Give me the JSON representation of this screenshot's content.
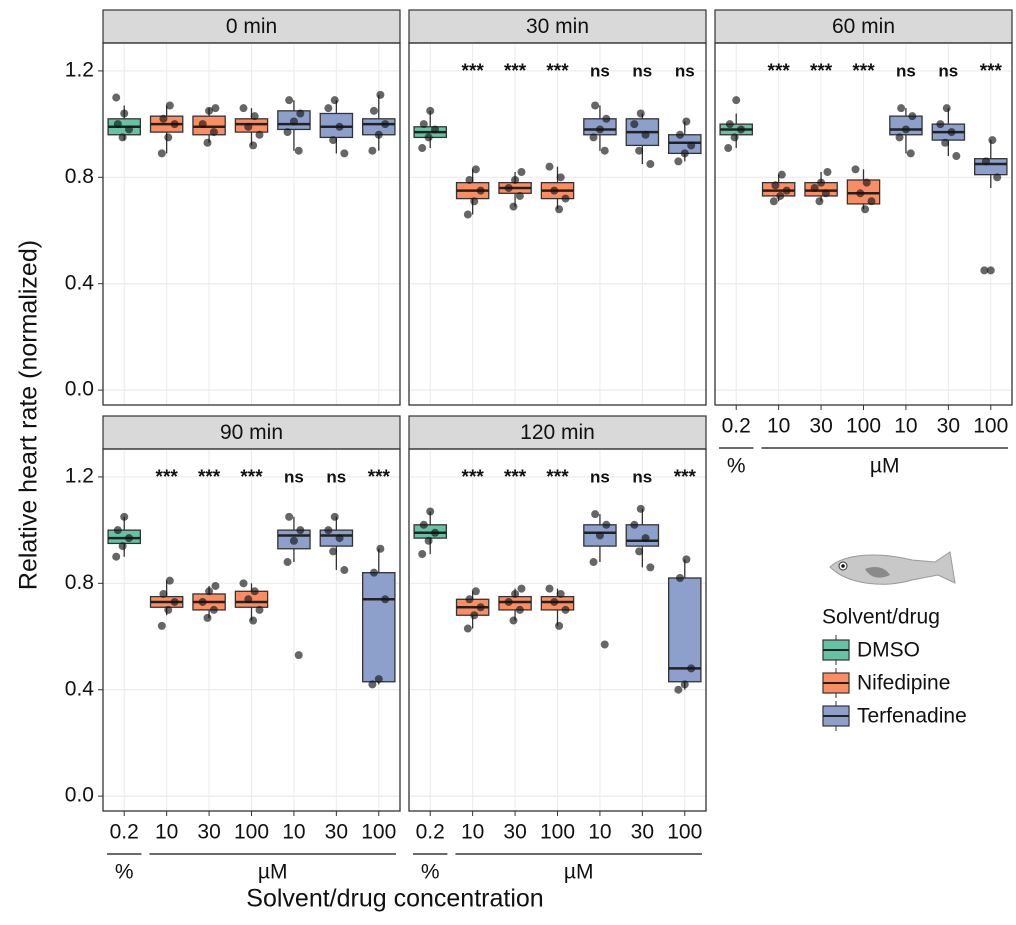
{
  "y_label": "Relative heart rate (normalized)",
  "x_label": "Solvent/drug concentration",
  "legend_title": "Solvent/drug",
  "series": [
    {
      "name": "DMSO",
      "color": "#66c2a5",
      "categories": [
        "0.2"
      ],
      "unit": "%"
    },
    {
      "name": "Nifedipine",
      "color": "#fc8d62",
      "categories": [
        "10",
        "30",
        "100"
      ],
      "unit": "µM"
    },
    {
      "name": "Terfenadine",
      "color": "#8da0cb",
      "categories": [
        "10",
        "30",
        "100"
      ],
      "unit": "µM"
    }
  ],
  "chart_data": [
    {
      "type": "box",
      "title": "0 min",
      "ylim": [
        -0.056,
        1.305
      ],
      "yticks": [
        {
          "value": 0,
          "label": "0.0"
        },
        0.4,
        0.8,
        1.2
      ],
      "boxes": [
        [
          {
            "q1": 0.96,
            "median": 0.99,
            "q3": 1.02,
            "low": 0.94,
            "high": 1.07,
            "points": [
              1.1,
              0.95,
              0.98,
              1.0,
              1.04
            ]
          }
        ],
        [
          {
            "q1": 0.97,
            "median": 1.0,
            "q3": 1.03,
            "low": 0.89,
            "high": 1.07,
            "points": [
              0.89,
              0.95,
              1.0,
              1.02,
              1.07
            ]
          },
          {
            "q1": 0.96,
            "median": 0.99,
            "q3": 1.03,
            "low": 0.93,
            "high": 1.06,
            "points": [
              0.93,
              0.97,
              1.0,
              1.05,
              1.06
            ]
          },
          {
            "q1": 0.97,
            "median": 1.0,
            "q3": 1.02,
            "low": 0.92,
            "high": 1.06,
            "points": [
              0.92,
              0.96,
              0.99,
              1.03,
              1.06
            ]
          }
        ],
        [
          {
            "q1": 0.98,
            "median": 1.0,
            "q3": 1.05,
            "low": 0.9,
            "high": 1.09,
            "points": [
              0.9,
              0.97,
              1.01,
              1.04,
              1.09
            ]
          },
          {
            "q1": 0.95,
            "median": 0.99,
            "q3": 1.04,
            "low": 0.89,
            "high": 1.09,
            "points": [
              0.89,
              0.94,
              0.99,
              1.06,
              1.09
            ]
          },
          {
            "q1": 0.96,
            "median": 1.0,
            "q3": 1.02,
            "low": 0.9,
            "high": 1.11,
            "points": [
              0.9,
              0.96,
              1.0,
              1.05,
              1.11
            ]
          }
        ]
      ]
    },
    {
      "type": "box",
      "title": "30 min",
      "ylim": [
        -0.056,
        1.305
      ],
      "yticks": [
        {
          "value": 0,
          "label": "0.0"
        },
        0.4,
        0.8,
        1.2
      ],
      "boxes": [
        [
          {
            "q1": 0.95,
            "median": 0.97,
            "q3": 0.99,
            "low": 0.91,
            "high": 1.05,
            "points": [
              0.91,
              0.95,
              0.98,
              1.0,
              1.05
            ]
          }
        ],
        [
          {
            "q1": 0.72,
            "median": 0.75,
            "q3": 0.78,
            "low": 0.66,
            "high": 0.83,
            "points": [
              0.66,
              0.71,
              0.75,
              0.79,
              0.83
            ],
            "sig": "***"
          },
          {
            "q1": 0.74,
            "median": 0.76,
            "q3": 0.78,
            "low": 0.69,
            "high": 0.82,
            "points": [
              0.69,
              0.73,
              0.76,
              0.79,
              0.82
            ],
            "sig": "***"
          },
          {
            "q1": 0.72,
            "median": 0.75,
            "q3": 0.78,
            "low": 0.68,
            "high": 0.84,
            "points": [
              0.68,
              0.72,
              0.75,
              0.8,
              0.84
            ],
            "sig": "***"
          }
        ],
        [
          {
            "q1": 0.96,
            "median": 0.98,
            "q3": 1.02,
            "low": 0.9,
            "high": 1.07,
            "points": [
              0.9,
              0.95,
              0.98,
              1.02,
              1.07
            ],
            "sig": "ns"
          },
          {
            "q1": 0.92,
            "median": 0.97,
            "q3": 1.02,
            "low": 0.85,
            "high": 1.04,
            "points": [
              0.85,
              0.9,
              0.96,
              1.0,
              1.04
            ],
            "sig": "ns"
          },
          {
            "q1": 0.89,
            "median": 0.93,
            "q3": 0.96,
            "low": 0.86,
            "high": 1.01,
            "points": [
              0.86,
              0.89,
              0.92,
              0.96,
              1.01
            ],
            "sig": "ns"
          }
        ]
      ]
    },
    {
      "type": "box",
      "title": "60 min",
      "ylim": [
        -0.056,
        1.305
      ],
      "yticks": [
        {
          "value": 0,
          "label": "0.0"
        },
        0.4,
        0.8,
        1.2
      ],
      "boxes": [
        [
          {
            "q1": 0.96,
            "median": 0.98,
            "q3": 1.0,
            "low": 0.91,
            "high": 1.04,
            "points": [
              0.91,
              0.95,
              0.98,
              1.0,
              1.09
            ]
          }
        ],
        [
          {
            "q1": 0.73,
            "median": 0.75,
            "q3": 0.78,
            "low": 0.71,
            "high": 0.81,
            "points": [
              0.71,
              0.73,
              0.75,
              0.77,
              0.81
            ],
            "sig": "***"
          },
          {
            "q1": 0.73,
            "median": 0.75,
            "q3": 0.78,
            "low": 0.71,
            "high": 0.82,
            "points": [
              0.71,
              0.74,
              0.76,
              0.78,
              0.82
            ],
            "sig": "***"
          },
          {
            "q1": 0.7,
            "median": 0.74,
            "q3": 0.79,
            "low": 0.68,
            "high": 0.83,
            "points": [
              0.68,
              0.71,
              0.74,
              0.78,
              0.83
            ],
            "sig": "***"
          }
        ],
        [
          {
            "q1": 0.96,
            "median": 0.98,
            "q3": 1.03,
            "low": 0.89,
            "high": 1.06,
            "points": [
              0.89,
              0.95,
              0.98,
              1.03,
              1.06
            ],
            "sig": "ns"
          },
          {
            "q1": 0.94,
            "median": 0.97,
            "q3": 1.0,
            "low": 0.88,
            "high": 1.06,
            "points": [
              0.88,
              0.93,
              0.97,
              1.0,
              1.06
            ],
            "sig": "ns"
          },
          {
            "q1": 0.81,
            "median": 0.85,
            "q3": 0.87,
            "low": 0.76,
            "high": 0.94,
            "points": [
              0.45,
              0.45,
              0.8,
              0.86,
              0.94
            ],
            "sig": "***"
          }
        ]
      ]
    },
    {
      "type": "box",
      "title": "90 min",
      "ylim": [
        -0.056,
        1.305
      ],
      "yticks": [
        {
          "value": 0,
          "label": "0.0"
        },
        0.4,
        0.8,
        1.2
      ],
      "boxes": [
        [
          {
            "q1": 0.95,
            "median": 0.97,
            "q3": 1.0,
            "low": 0.9,
            "high": 1.05,
            "points": [
              0.9,
              0.94,
              0.97,
              1.0,
              1.05
            ]
          }
        ],
        [
          {
            "q1": 0.71,
            "median": 0.73,
            "q3": 0.75,
            "low": 0.68,
            "high": 0.81,
            "points": [
              0.64,
              0.7,
              0.73,
              0.76,
              0.81
            ],
            "sig": "***"
          },
          {
            "q1": 0.7,
            "median": 0.73,
            "q3": 0.76,
            "low": 0.67,
            "high": 0.79,
            "points": [
              0.67,
              0.7,
              0.73,
              0.77,
              0.79
            ],
            "sig": "***"
          },
          {
            "q1": 0.71,
            "median": 0.73,
            "q3": 0.77,
            "low": 0.66,
            "high": 0.8,
            "points": [
              0.66,
              0.7,
              0.74,
              0.77,
              0.8
            ],
            "sig": "***"
          }
        ],
        [
          {
            "q1": 0.93,
            "median": 0.98,
            "q3": 1.0,
            "low": 0.88,
            "high": 1.05,
            "points": [
              0.53,
              0.88,
              0.96,
              1.0,
              1.05
            ],
            "sig": "ns"
          },
          {
            "q1": 0.94,
            "median": 0.98,
            "q3": 1.0,
            "low": 0.85,
            "high": 1.05,
            "points": [
              0.85,
              0.92,
              0.97,
              1.0,
              1.05
            ],
            "sig": "ns"
          },
          {
            "q1": 0.43,
            "median": 0.74,
            "q3": 0.84,
            "low": 0.42,
            "high": 0.93,
            "points": [
              0.42,
              0.44,
              0.74,
              0.84,
              0.93
            ],
            "sig": "***"
          }
        ]
      ]
    },
    {
      "type": "box",
      "title": "120 min",
      "ylim": [
        -0.056,
        1.305
      ],
      "yticks": [
        {
          "value": 0,
          "label": "0.0"
        },
        0.4,
        0.8,
        1.2
      ],
      "boxes": [
        [
          {
            "q1": 0.97,
            "median": 0.99,
            "q3": 1.02,
            "low": 0.91,
            "high": 1.07,
            "points": [
              0.91,
              0.96,
              0.99,
              1.02,
              1.07
            ]
          }
        ],
        [
          {
            "q1": 0.68,
            "median": 0.71,
            "q3": 0.74,
            "low": 0.63,
            "high": 0.77,
            "points": [
              0.63,
              0.68,
              0.71,
              0.74,
              0.77
            ],
            "sig": "***"
          },
          {
            "q1": 0.7,
            "median": 0.73,
            "q3": 0.75,
            "low": 0.66,
            "high": 0.78,
            "points": [
              0.66,
              0.7,
              0.73,
              0.76,
              0.78
            ],
            "sig": "***"
          },
          {
            "q1": 0.7,
            "median": 0.73,
            "q3": 0.75,
            "low": 0.64,
            "high": 0.78,
            "points": [
              0.64,
              0.7,
              0.73,
              0.76,
              0.78
            ],
            "sig": "***"
          }
        ],
        [
          {
            "q1": 0.94,
            "median": 0.99,
            "q3": 1.02,
            "low": 0.88,
            "high": 1.06,
            "points": [
              0.57,
              0.88,
              0.98,
              1.02,
              1.06
            ],
            "sig": "ns"
          },
          {
            "q1": 0.94,
            "median": 0.96,
            "q3": 1.02,
            "low": 0.86,
            "high": 1.08,
            "points": [
              0.86,
              0.92,
              0.97,
              1.02,
              1.08
            ],
            "sig": "ns"
          },
          {
            "q1": 0.43,
            "median": 0.48,
            "q3": 0.82,
            "low": 0.4,
            "high": 0.89,
            "points": [
              0.4,
              0.42,
              0.48,
              0.82,
              0.89
            ],
            "sig": "***"
          }
        ]
      ]
    }
  ]
}
